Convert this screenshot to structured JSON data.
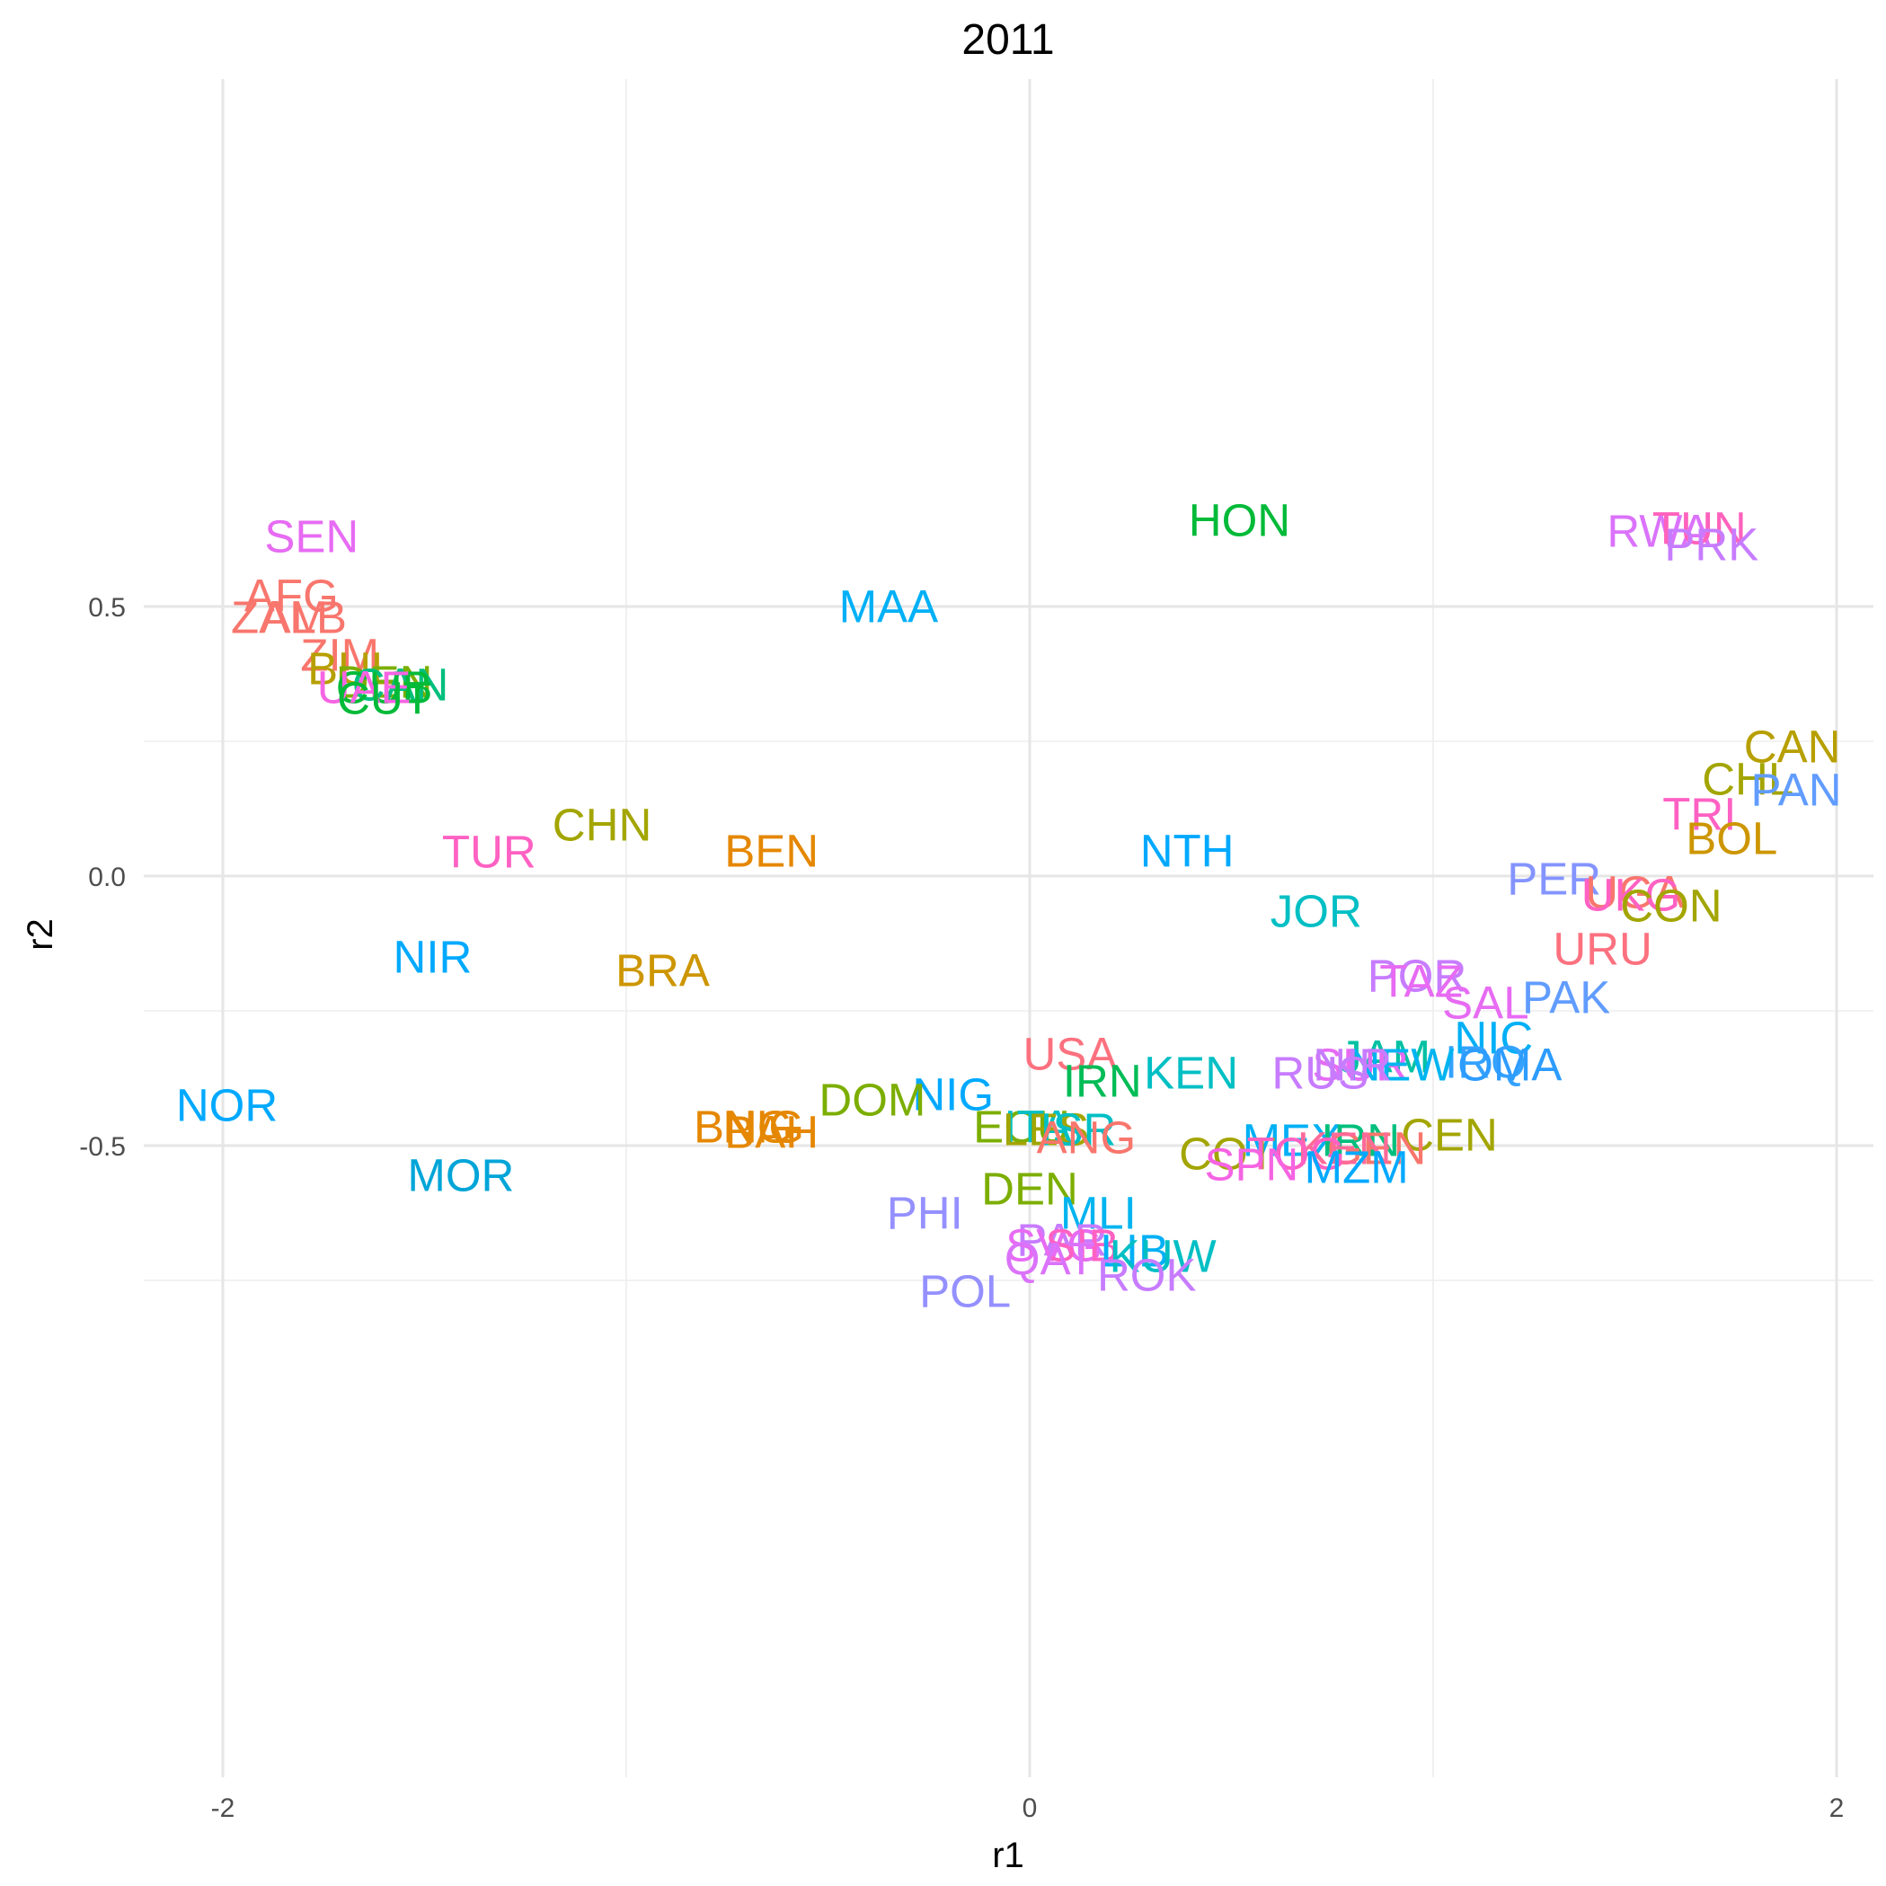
{
  "chart_data": {
    "type": "scatter",
    "title": "2011",
    "xlabel": "r1",
    "ylabel": "r2",
    "xlim": [
      -2.2,
      2.1
    ],
    "ylim": [
      -0.83,
      0.73
    ],
    "xticks": [
      -2,
      0,
      2
    ],
    "xtick_labels": [
      "-2",
      "0",
      "2"
    ],
    "yticks": [
      0.5,
      0.0,
      -0.5
    ],
    "ytick_labels": [
      "0.5",
      "0.0",
      "-0.5"
    ],
    "grid": true,
    "legend": "none",
    "points": [
      {
        "label": "SEN",
        "x": -1.78,
        "y": 0.63,
        "color": "#E76BF3"
      },
      {
        "label": "HON",
        "x": 0.52,
        "y": 0.66,
        "color": "#00BA38"
      },
      {
        "label": "RWA",
        "x": 1.56,
        "y": 0.64,
        "color": "#DB72FB"
      },
      {
        "label": "TUN",
        "x": 1.66,
        "y": 0.645,
        "color": "#FF62BC"
      },
      {
        "label": "PRK",
        "x": 1.69,
        "y": 0.615,
        "color": "#C77CFF"
      },
      {
        "label": "AFG",
        "x": -1.83,
        "y": 0.52,
        "color": "#F8766D"
      },
      {
        "label": "MAA",
        "x": -0.35,
        "y": 0.5,
        "color": "#00B0F6"
      },
      {
        "label": "ZAM",
        "x": -1.86,
        "y": 0.48,
        "color": "#F8766D"
      },
      {
        "label": "ALB",
        "x": -1.8,
        "y": 0.48,
        "color": "#F8766D"
      },
      {
        "label": "ZIM",
        "x": -1.71,
        "y": 0.41,
        "color": "#F8766D"
      },
      {
        "label": "BUL",
        "x": -1.68,
        "y": 0.385,
        "color": "#B79F00"
      },
      {
        "label": "DEN",
        "x": -1.6,
        "y": 0.36,
        "color": "#7CAE00"
      },
      {
        "label": "CAN",
        "x": -1.56,
        "y": 0.355,
        "color": "#00BF7D"
      },
      {
        "label": "CUB",
        "x": -1.6,
        "y": 0.35,
        "color": "#00BA38"
      },
      {
        "label": "UAE",
        "x": -1.65,
        "y": 0.35,
        "color": "#F564E3"
      },
      {
        "label": "CUT",
        "x": -1.6,
        "y": 0.33,
        "color": "#00BA38"
      },
      {
        "label": "CAN",
        "x": 1.89,
        "y": 0.24,
        "color": "#B79F00"
      },
      {
        "label": "CHL",
        "x": 1.78,
        "y": 0.18,
        "color": "#A3A500"
      },
      {
        "label": "PAN",
        "x": 1.9,
        "y": 0.16,
        "color": "#619CFF"
      },
      {
        "label": "TRI",
        "x": 1.66,
        "y": 0.115,
        "color": "#FF61C3"
      },
      {
        "label": "BOL",
        "x": 1.74,
        "y": 0.07,
        "color": "#CD9600"
      },
      {
        "label": "CHN",
        "x": -1.06,
        "y": 0.095,
        "color": "#A3A500"
      },
      {
        "label": "TUR",
        "x": -1.34,
        "y": 0.045,
        "color": "#FF61C3"
      },
      {
        "label": "BEN",
        "x": -0.64,
        "y": 0.047,
        "color": "#E58700"
      },
      {
        "label": "NTH",
        "x": 0.39,
        "y": 0.047,
        "color": "#00A9FF"
      },
      {
        "label": "PER",
        "x": 1.3,
        "y": -0.005,
        "color": "#8494FF"
      },
      {
        "label": "UGA",
        "x": 1.5,
        "y": -0.03,
        "color": "#F8766D"
      },
      {
        "label": "UKG",
        "x": 1.49,
        "y": -0.035,
        "color": "#FF61C3"
      },
      {
        "label": "CON",
        "x": 1.59,
        "y": -0.055,
        "color": "#A3A500"
      },
      {
        "label": "JOR",
        "x": 0.71,
        "y": -0.065,
        "color": "#00BFC4"
      },
      {
        "label": "NIR",
        "x": -1.48,
        "y": -0.15,
        "color": "#00A9FF"
      },
      {
        "label": "URU",
        "x": 1.42,
        "y": -0.135,
        "color": "#FC717F"
      },
      {
        "label": "BRA",
        "x": -0.91,
        "y": -0.175,
        "color": "#CD9600"
      },
      {
        "label": "POR",
        "x": 0.96,
        "y": -0.185,
        "color": "#C77CFF"
      },
      {
        "label": "TAZ",
        "x": 0.97,
        "y": -0.195,
        "color": "#E76BF3"
      },
      {
        "label": "PAK",
        "x": 1.33,
        "y": -0.225,
        "color": "#619CFF"
      },
      {
        "label": "SAL",
        "x": 1.13,
        "y": -0.235,
        "color": "#E76BF3"
      },
      {
        "label": "NIC",
        "x": 1.15,
        "y": -0.3,
        "color": "#00B0F6"
      },
      {
        "label": "USA",
        "x": 0.1,
        "y": -0.33,
        "color": "#FC717F"
      },
      {
        "label": "JAM",
        "x": 0.88,
        "y": -0.335,
        "color": "#00C1A3"
      },
      {
        "label": "IRQ",
        "x": 1.13,
        "y": -0.345,
        "color": "#35A2FF"
      },
      {
        "label": "SUR",
        "x": 0.82,
        "y": -0.35,
        "color": "#E76BF3"
      },
      {
        "label": "NEW",
        "x": 0.92,
        "y": -0.35,
        "color": "#00B4F0"
      },
      {
        "label": "OMA",
        "x": 1.19,
        "y": -0.35,
        "color": "#2D9CFF"
      },
      {
        "label": "NIR",
        "x": 0.8,
        "y": -0.35,
        "color": "#C77CFF"
      },
      {
        "label": "KEN",
        "x": 0.4,
        "y": -0.365,
        "color": "#00BFC4"
      },
      {
        "label": "RUS",
        "x": 0.72,
        "y": -0.365,
        "color": "#C77CFF"
      },
      {
        "label": "IRN",
        "x": 0.18,
        "y": -0.38,
        "color": "#00BC56"
      },
      {
        "label": "NIG",
        "x": -0.19,
        "y": -0.405,
        "color": "#00A9FF"
      },
      {
        "label": "DOM",
        "x": -0.39,
        "y": -0.415,
        "color": "#7CAE00"
      },
      {
        "label": "NOR",
        "x": -1.99,
        "y": -0.425,
        "color": "#00A9FF"
      },
      {
        "label": "BNG",
        "x": -0.71,
        "y": -0.465,
        "color": "#E58700"
      },
      {
        "label": "NIG",
        "x": -0.66,
        "y": -0.465,
        "color": "#E58700"
      },
      {
        "label": "BAH",
        "x": -0.64,
        "y": -0.475,
        "color": "#E58700"
      },
      {
        "label": "ECU",
        "x": -0.02,
        "y": -0.465,
        "color": "#7CAE00"
      },
      {
        "label": "ITA",
        "x": 0.02,
        "y": -0.465,
        "color": "#00BFC4"
      },
      {
        "label": "LES",
        "x": 0.04,
        "y": -0.47,
        "color": "#A3A500"
      },
      {
        "label": "ISR",
        "x": 0.12,
        "y": -0.47,
        "color": "#00BFC4"
      },
      {
        "label": "ANG",
        "x": 0.14,
        "y": -0.485,
        "color": "#F8766D"
      },
      {
        "label": "CEN",
        "x": 1.04,
        "y": -0.48,
        "color": "#A3A500"
      },
      {
        "label": "MEX",
        "x": 0.65,
        "y": -0.49,
        "color": "#00B0F6"
      },
      {
        "label": "IRN",
        "x": 0.82,
        "y": -0.49,
        "color": "#00BF7D"
      },
      {
        "label": "GEN",
        "x": 0.86,
        "y": -0.505,
        "color": "#F8766D"
      },
      {
        "label": "KEN",
        "x": 0.78,
        "y": -0.505,
        "color": "#FF6A98"
      },
      {
        "label": "COT",
        "x": 0.49,
        "y": -0.515,
        "color": "#A3A500"
      },
      {
        "label": "TOG",
        "x": 0.66,
        "y": -0.515,
        "color": "#FF61C3"
      },
      {
        "label": "SPN",
        "x": 0.55,
        "y": -0.535,
        "color": "#F564E3"
      },
      {
        "label": "MZM",
        "x": 0.81,
        "y": -0.54,
        "color": "#00A9FF"
      },
      {
        "label": "MOR",
        "x": -1.41,
        "y": -0.555,
        "color": "#00A5D8"
      },
      {
        "label": "DEN",
        "x": 0.0,
        "y": -0.58,
        "color": "#7CAE00"
      },
      {
        "label": "MLI",
        "x": 0.17,
        "y": -0.625,
        "color": "#00B4F0"
      },
      {
        "label": "PHI",
        "x": -0.26,
        "y": -0.625,
        "color": "#9590FF"
      },
      {
        "label": "PAR",
        "x": 0.08,
        "y": -0.675,
        "color": "#C77CFF"
      },
      {
        "label": "SVG",
        "x": 0.06,
        "y": -0.685,
        "color": "#E76BF3"
      },
      {
        "label": "SIB",
        "x": 0.13,
        "y": -0.685,
        "color": "#FF61C3"
      },
      {
        "label": "LIB",
        "x": 0.26,
        "y": -0.695,
        "color": "#00B0F6"
      },
      {
        "label": "KUW",
        "x": 0.33,
        "y": -0.705,
        "color": "#00BFC4"
      },
      {
        "label": "QAT",
        "x": 0.05,
        "y": -0.71,
        "color": "#DB72FB"
      },
      {
        "label": "ROK",
        "x": 0.29,
        "y": -0.74,
        "color": "#C77CFF"
      },
      {
        "label": "POL",
        "x": -0.16,
        "y": -0.77,
        "color": "#9590FF"
      }
    ]
  }
}
